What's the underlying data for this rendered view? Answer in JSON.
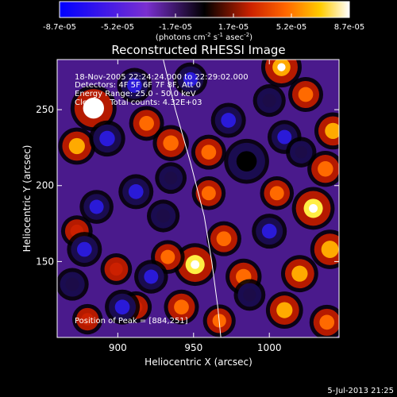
{
  "colorbar": {
    "ticks": [
      "-8.7e-05",
      "-5.2e-05",
      "-1.7e-05",
      "1.7e-05",
      "5.2e-05",
      "8.7e-05"
    ],
    "unit_main": "(photons cm",
    "unit_exp1": "-2",
    "unit_mid": " s",
    "unit_exp2": "-1",
    "unit_end": " asec",
    "unit_exp3": "-2",
    "unit_close": ")"
  },
  "header": {
    "title": "Reconstructed RHESSI Image",
    "info_lines": [
      "18-Nov-2005 22:24:24.000 to 22:29:02.000",
      "Detectors: 4F 5F 6F 7F 8F, Att 0",
      "Energy Range: 25.0 - 50.0 keV",
      "Clean     Total counts: 4.32E+03"
    ],
    "peak_label": "Position of Peak = [884,251]"
  },
  "footer": {
    "date": "5-Jul-2013 21:25"
  },
  "chart_data": {
    "type": "heatmap",
    "title": "Reconstructed RHESSI Image",
    "xlabel": "Heliocentric X (arcsec)",
    "ylabel": "Heliocentric Y (arcsec)",
    "xlim": [
      860,
      1046
    ],
    "ylim": [
      100,
      283
    ],
    "xticks": [
      900,
      950,
      1000
    ],
    "yticks": [
      150,
      200,
      250
    ],
    "colorbar_range": [
      -8.7e-05,
      8.7e-05
    ],
    "colormap": [
      "#0000ff",
      "#7a2fd0",
      "#000000",
      "#cc2200",
      "#ff6600",
      "#ffcc00",
      "#ffffff"
    ],
    "limb_curve": [
      [
        930,
        283
      ],
      [
        938,
        250
      ],
      [
        948,
        215
      ],
      [
        957,
        180
      ],
      [
        962,
        150
      ],
      [
        966,
        120
      ],
      [
        968,
        100
      ]
    ],
    "peak_position": [
      884,
      251
    ],
    "blobs": [
      {
        "x": 884,
        "y": 251,
        "v": 1.0
      },
      {
        "x": 873,
        "y": 226,
        "v": 0.6
      },
      {
        "x": 919,
        "y": 241,
        "v": 0.5
      },
      {
        "x": 935,
        "y": 228,
        "v": 0.55
      },
      {
        "x": 960,
        "y": 222,
        "v": 0.5
      },
      {
        "x": 1008,
        "y": 278,
        "v": 0.75
      },
      {
        "x": 1024,
        "y": 260,
        "v": 0.5
      },
      {
        "x": 1042,
        "y": 236,
        "v": 0.6
      },
      {
        "x": 1037,
        "y": 211,
        "v": 0.55
      },
      {
        "x": 1005,
        "y": 195,
        "v": 0.45
      },
      {
        "x": 1029,
        "y": 185,
        "v": 0.85
      },
      {
        "x": 1040,
        "y": 158,
        "v": 0.7
      },
      {
        "x": 1020,
        "y": 142,
        "v": 0.6
      },
      {
        "x": 1010,
        "y": 118,
        "v": 0.6
      },
      {
        "x": 1038,
        "y": 110,
        "v": 0.5
      },
      {
        "x": 983,
        "y": 140,
        "v": 0.55
      },
      {
        "x": 970,
        "y": 165,
        "v": 0.5
      },
      {
        "x": 951,
        "y": 148,
        "v": 0.85
      },
      {
        "x": 933,
        "y": 153,
        "v": 0.45
      },
      {
        "x": 942,
        "y": 120,
        "v": 0.5
      },
      {
        "x": 960,
        "y": 195,
        "v": 0.45
      },
      {
        "x": 899,
        "y": 145,
        "v": 0.35
      },
      {
        "x": 873,
        "y": 170,
        "v": 0.35
      },
      {
        "x": 880,
        "y": 112,
        "v": 0.3
      },
      {
        "x": 912,
        "y": 120,
        "v": 0.35
      },
      {
        "x": 967,
        "y": 111,
        "v": 0.4
      },
      {
        "x": 893,
        "y": 231,
        "v": -0.55
      },
      {
        "x": 911,
        "y": 266,
        "v": -0.5
      },
      {
        "x": 985,
        "y": 216,
        "v": -0.95
      },
      {
        "x": 973,
        "y": 243,
        "v": -0.5
      },
      {
        "x": 912,
        "y": 196,
        "v": -0.5
      },
      {
        "x": 886,
        "y": 186,
        "v": -0.45
      },
      {
        "x": 930,
        "y": 180,
        "v": -0.4
      },
      {
        "x": 878,
        "y": 158,
        "v": -0.5
      },
      {
        "x": 922,
        "y": 140,
        "v": -0.45
      },
      {
        "x": 903,
        "y": 120,
        "v": -0.5
      },
      {
        "x": 1000,
        "y": 170,
        "v": -0.5
      },
      {
        "x": 1010,
        "y": 232,
        "v": -0.45
      },
      {
        "x": 1000,
        "y": 256,
        "v": -0.4
      },
      {
        "x": 948,
        "y": 270,
        "v": -0.45
      },
      {
        "x": 935,
        "y": 205,
        "v": -0.35
      },
      {
        "x": 987,
        "y": 128,
        "v": -0.35
      },
      {
        "x": 1021,
        "y": 222,
        "v": -0.3
      },
      {
        "x": 870,
        "y": 135,
        "v": -0.4
      }
    ]
  }
}
